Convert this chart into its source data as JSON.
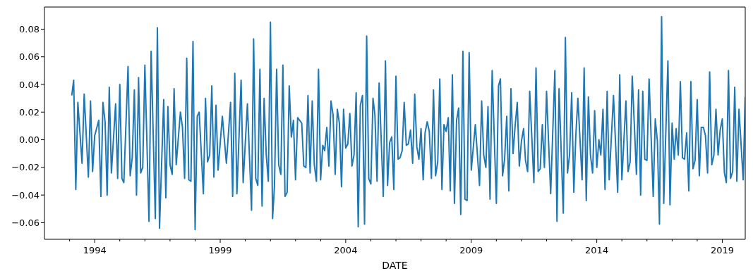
{
  "chart_data": {
    "type": "line",
    "xlabel": "DATE",
    "x": [
      "1993-02",
      "1993-03",
      "1993-04",
      "1993-05",
      "1993-07",
      "1993-08",
      "1993-10",
      "1993-11",
      "1993-12",
      "1994-01",
      "1994-03",
      "1994-04",
      "1994-05",
      "1994-06",
      "1994-07",
      "1994-08",
      "1994-09",
      "1994-11",
      "1994-12",
      "1995-01",
      "1995-02",
      "1995-03",
      "1995-05",
      "1995-06",
      "1995-07",
      "1995-08",
      "1995-09",
      "1995-10",
      "1995-11",
      "1995-12",
      "1996-01",
      "1996-03",
      "1996-04",
      "1996-06",
      "1996-07",
      "1996-08",
      "1996-10",
      "1996-11",
      "1996-12",
      "1997-01",
      "1997-02",
      "1997-03",
      "1997-04",
      "1997-06",
      "1997-07",
      "1997-08",
      "1997-09",
      "1997-10",
      "1997-11",
      "1997-12",
      "1998-01",
      "1998-02",
      "1998-03",
      "1998-05",
      "1998-06",
      "1998-07",
      "1998-08",
      "1998-09",
      "1998-10",
      "1998-11",
      "1998-12",
      "1999-02",
      "1999-04",
      "1999-06",
      "1999-07",
      "1999-08",
      "1999-09",
      "1999-11",
      "1999-12",
      "2000-02",
      "2000-04",
      "2000-05",
      "2000-06",
      "2000-07",
      "2000-08",
      "2000-09",
      "2000-10",
      "2000-11",
      "2000-12",
      "2001-01",
      "2001-02",
      "2001-03",
      "2001-04",
      "2001-05",
      "2001-06",
      "2001-07",
      "2001-08",
      "2001-09",
      "2001-10",
      "2001-11",
      "2001-12",
      "2002-01",
      "2002-02",
      "2002-04",
      "2002-05",
      "2002-06",
      "2002-07",
      "2002-08",
      "2002-09",
      "2002-10",
      "2002-11",
      "2002-12",
      "2003-01",
      "2003-02",
      "2003-03",
      "2003-04",
      "2003-05",
      "2003-06",
      "2003-07",
      "2003-08",
      "2003-09",
      "2003-10",
      "2003-11",
      "2003-12",
      "2004-01",
      "2004-02",
      "2004-03",
      "2004-04",
      "2004-05",
      "2004-06",
      "2004-07",
      "2004-08",
      "2004-09",
      "2004-10",
      "2004-11",
      "2004-12",
      "2005-01",
      "2005-02",
      "2005-03",
      "2005-04",
      "2005-05",
      "2005-07",
      "2005-08",
      "2005-09",
      "2005-10",
      "2005-11",
      "2005-12",
      "2006-01",
      "2006-02",
      "2006-03",
      "2006-04",
      "2006-05",
      "2006-06",
      "2006-07",
      "2006-08",
      "2006-09",
      "2006-10",
      "2006-11",
      "2006-12",
      "2007-01",
      "2007-02",
      "2007-03",
      "2007-04",
      "2007-05",
      "2007-06",
      "2007-07",
      "2007-08",
      "2007-09",
      "2007-10",
      "2007-11",
      "2007-12",
      "2008-01",
      "2008-02",
      "2008-03",
      "2008-04",
      "2008-05",
      "2008-06",
      "2008-07",
      "2008-08",
      "2008-09",
      "2008-10",
      "2008-11",
      "2008-12",
      "2009-01",
      "2009-03",
      "2009-05",
      "2009-06",
      "2009-07",
      "2009-08",
      "2009-09",
      "2009-10",
      "2009-11",
      "2010-01",
      "2010-02",
      "2010-03",
      "2010-04",
      "2010-05",
      "2010-06",
      "2010-07",
      "2010-08",
      "2010-09",
      "2010-10",
      "2010-11",
      "2010-12",
      "2011-01",
      "2011-02",
      "2011-03",
      "2011-04",
      "2011-05",
      "2011-07",
      "2011-08",
      "2011-09",
      "2011-10",
      "2011-11",
      "2011-12",
      "2012-01",
      "2012-03",
      "2012-05",
      "2012-06",
      "2012-07",
      "2012-09",
      "2012-10",
      "2012-11",
      "2012-12",
      "2013-01",
      "2013-02",
      "2013-03",
      "2013-04",
      "2013-06",
      "2013-07",
      "2013-08",
      "2013-09",
      "2013-10",
      "2013-11",
      "2013-12",
      "2014-01",
      "2014-02",
      "2014-03",
      "2014-04",
      "2014-05",
      "2014-06",
      "2014-07",
      "2014-09",
      "2014-11",
      "2014-12",
      "2015-01",
      "2015-03",
      "2015-04",
      "2015-05",
      "2015-06",
      "2015-08",
      "2015-09",
      "2015-10",
      "2015-11",
      "2015-12",
      "2016-01",
      "2016-02",
      "2016-04",
      "2016-05",
      "2016-06",
      "2016-07",
      "2016-08",
      "2016-09",
      "2016-11",
      "2016-12",
      "2017-01",
      "2017-02",
      "2017-03",
      "2017-04",
      "2017-05",
      "2017-06",
      "2017-07",
      "2017-08",
      "2017-09",
      "2017-10",
      "2017-11",
      "2017-12",
      "2018-01",
      "2018-02",
      "2018-03",
      "2018-04",
      "2018-05",
      "2018-06",
      "2018-07",
      "2018-08",
      "2018-09",
      "2018-10",
      "2018-11",
      "2018-12",
      "2019-01",
      "2019-02",
      "2019-03",
      "2019-04",
      "2019-05",
      "2019-06",
      "2019-07",
      "2019-08",
      "2019-09",
      "2019-11",
      "2019-12"
    ],
    "series": [
      {
        "color": "#1f77b4",
        "values": [
          0.032,
          0.043,
          -0.036,
          0.027,
          -0.017,
          0.033,
          -0.027,
          0.028,
          -0.023,
          0.003,
          0.014,
          -0.041,
          0.027,
          0.013,
          -0.04,
          0.038,
          -0.024,
          0.026,
          -0.028,
          0.04,
          -0.028,
          -0.031,
          0.053,
          -0.026,
          -0.013,
          0.036,
          -0.04,
          0.045,
          -0.024,
          -0.02,
          0.054,
          -0.059,
          0.064,
          -0.057,
          0.081,
          -0.064,
          0.029,
          -0.042,
          0.024,
          -0.018,
          -0.025,
          0.037,
          -0.018,
          0.02,
          0.009,
          -0.028,
          0.059,
          -0.029,
          -0.03,
          0.071,
          -0.065,
          0.017,
          0.02,
          -0.039,
          0.03,
          -0.016,
          -0.011,
          0.039,
          -0.027,
          0.025,
          -0.022,
          0.017,
          -0.017,
          0.027,
          -0.041,
          0.048,
          -0.039,
          0.043,
          -0.031,
          0.026,
          -0.051,
          0.073,
          -0.028,
          -0.033,
          0.051,
          -0.048,
          0.03,
          -0.011,
          -0.03,
          0.085,
          -0.057,
          -0.033,
          0.051,
          -0.018,
          -0.025,
          0.054,
          -0.041,
          -0.038,
          0.039,
          0.002,
          0.014,
          -0.029,
          0.016,
          0.012,
          -0.019,
          -0.02,
          0.032,
          -0.024,
          0.028,
          -0.018,
          -0.03,
          0.051,
          -0.029,
          -0.004,
          -0.008,
          0.009,
          -0.019,
          0.028,
          0.018,
          -0.025,
          0.022,
          0.012,
          -0.034,
          0.022,
          -0.006,
          -0.003,
          0.019,
          -0.019,
          -0.011,
          0.034,
          -0.063,
          0.025,
          0.032,
          -0.061,
          0.075,
          -0.028,
          -0.032,
          0.03,
          0.018,
          -0.03,
          0.041,
          -0.041,
          0.057,
          -0.033,
          -0.002,
          0.002,
          -0.036,
          0.046,
          -0.014,
          -0.013,
          -0.008,
          0.027,
          -0.004,
          -0.003,
          0.007,
          -0.017,
          0.033,
          -0.005,
          -0.014,
          0.008,
          -0.029,
          0.005,
          0.013,
          0.006,
          -0.028,
          0.036,
          -0.026,
          -0.016,
          0.044,
          -0.036,
          0.011,
          0.006,
          0.016,
          -0.037,
          0.047,
          -0.046,
          0.014,
          0.023,
          -0.054,
          0.064,
          -0.043,
          -0.044,
          0.063,
          -0.022,
          0.011,
          -0.033,
          0.028,
          -0.011,
          -0.02,
          0.024,
          -0.043,
          0.05,
          -0.046,
          0.039,
          0.044,
          -0.026,
          -0.014,
          0.017,
          -0.037,
          0.037,
          -0.01,
          0.01,
          0.027,
          -0.019,
          -0.001,
          0.008,
          -0.015,
          -0.023,
          0.035,
          -0.031,
          0.052,
          -0.023,
          -0.021,
          0.011,
          -0.02,
          0.035,
          -0.039,
          0.05,
          -0.059,
          0.037,
          -0.053,
          0.074,
          -0.024,
          -0.011,
          0.034,
          -0.038,
          0.002,
          0.03,
          -0.029,
          0.052,
          -0.044,
          0.031,
          -0.011,
          -0.024,
          0.021,
          -0.02,
          0.0,
          -0.011,
          0.022,
          -0.036,
          0.035,
          -0.029,
          0.032,
          -0.038,
          0.047,
          -0.029,
          0.028,
          -0.023,
          -0.016,
          0.046,
          -0.025,
          0.036,
          -0.04,
          0.035,
          -0.014,
          -0.015,
          0.044,
          -0.041,
          0.015,
          -0.001,
          -0.061,
          0.089,
          -0.046,
          0.057,
          -0.047,
          0.012,
          -0.014,
          0.008,
          -0.011,
          0.042,
          -0.013,
          -0.014,
          0.005,
          -0.037,
          0.042,
          -0.021,
          -0.015,
          0.029,
          -0.026,
          0.009,
          0.009,
          0.003,
          -0.024,
          0.049,
          -0.018,
          -0.011,
          0.022,
          -0.011,
          0.007,
          0.015,
          -0.024,
          -0.031,
          0.05,
          -0.028,
          -0.023,
          0.038,
          -0.03,
          0.022,
          -0.029,
          0.031
        ]
      }
    ],
    "xlim": [
      "1992-01",
      "2019-12"
    ],
    "xticks": [
      {
        "value": "1993",
        "label": null
      },
      {
        "value": "1994",
        "label": "1994"
      },
      {
        "value": "1995",
        "label": null
      },
      {
        "value": "1996",
        "label": null
      },
      {
        "value": "1997",
        "label": null
      },
      {
        "value": "1998",
        "label": null
      },
      {
        "value": "1999",
        "label": "1999"
      },
      {
        "value": "2000",
        "label": null
      },
      {
        "value": "2001",
        "label": null
      },
      {
        "value": "2002",
        "label": null
      },
      {
        "value": "2003",
        "label": null
      },
      {
        "value": "2004",
        "label": "2004"
      },
      {
        "value": "2005",
        "label": null
      },
      {
        "value": "2006",
        "label": null
      },
      {
        "value": "2007",
        "label": null
      },
      {
        "value": "2008",
        "label": null
      },
      {
        "value": "2009",
        "label": "2009"
      },
      {
        "value": "2010",
        "label": null
      },
      {
        "value": "2011",
        "label": null
      },
      {
        "value": "2012",
        "label": null
      },
      {
        "value": "2013",
        "label": null
      },
      {
        "value": "2014",
        "label": "2014"
      },
      {
        "value": "2015",
        "label": null
      },
      {
        "value": "2016",
        "label": null
      },
      {
        "value": "2017",
        "label": null
      },
      {
        "value": "2018",
        "label": null
      },
      {
        "value": "2019",
        "label": "2019"
      }
    ],
    "ylim": [
      -0.072,
      0.096
    ],
    "yticks": [
      {
        "value": -0.06,
        "label": "−0.06"
      },
      {
        "value": -0.04,
        "label": "−0.04"
      },
      {
        "value": -0.02,
        "label": "−0.02"
      },
      {
        "value": 0,
        "label": "0.00"
      },
      0.02,
      0.04,
      0.06,
      0.08
    ],
    "grid": false,
    "legend": false,
    "marker": "none",
    "line_style": "solid"
  }
}
